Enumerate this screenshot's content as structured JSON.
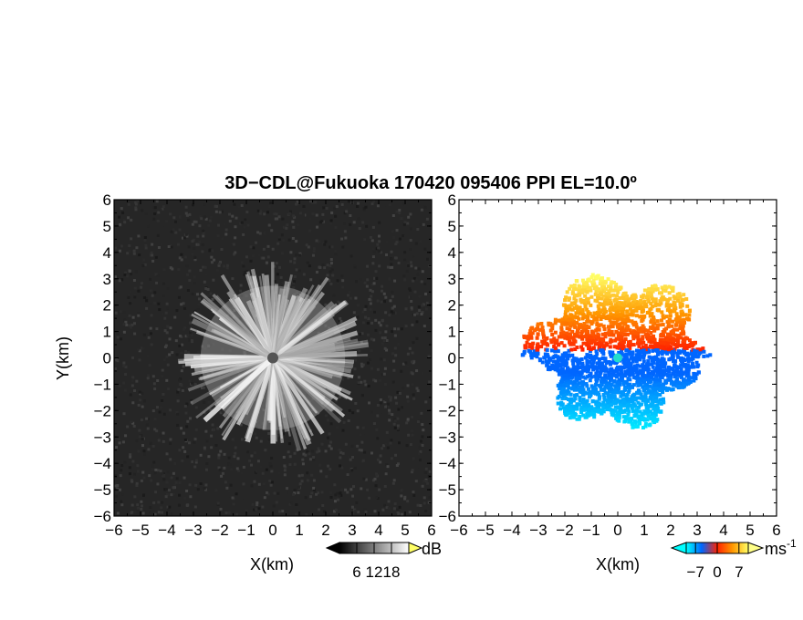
{
  "chart_data": [
    {
      "type": "heatmap",
      "panel": "reflectivity",
      "xlabel": "X(km)",
      "ylabel": "Y(km)",
      "xlim": [
        -6,
        6
      ],
      "ylim": [
        -6,
        6
      ],
      "x_ticks": [
        "-6",
        "-5",
        "-4",
        "-3",
        "-2",
        "-1",
        "0",
        "1",
        "2",
        "3",
        "4",
        "5",
        "6"
      ],
      "y_ticks": [
        "-6",
        "-5",
        "-4",
        "-3",
        "-2",
        "-1",
        "0",
        "1",
        "2",
        "3",
        "4",
        "5",
        "6"
      ],
      "colorbar": {
        "unit": "dB",
        "ticks": [
          "6",
          "12",
          "18"
        ],
        "tick_values": [
          6,
          12,
          18
        ],
        "range": [
          0,
          24
        ],
        "colors": [
          "#000000",
          "#ffffff"
        ]
      },
      "background_color": "#262626",
      "echo_radius_km": 3.5,
      "radar_site": [
        0,
        0
      ]
    },
    {
      "type": "heatmap",
      "panel": "doppler_velocity",
      "xlabel": "X(km)",
      "ylabel": "",
      "xlim": [
        -6,
        6
      ],
      "ylim": [
        -6,
        6
      ],
      "x_ticks": [
        "-6",
        "-5",
        "-4",
        "-3",
        "-2",
        "-1",
        "0",
        "1",
        "2",
        "3",
        "4",
        "5",
        "6"
      ],
      "y_ticks": [
        "-6",
        "-5",
        "-4",
        "-3",
        "-2",
        "-1",
        "0",
        "1",
        "2",
        "3",
        "4",
        "5",
        "6"
      ],
      "colorbar": {
        "unit": "ms",
        "unit_superscript": "-1",
        "ticks": [
          "-7",
          "0",
          "7"
        ],
        "tick_values": [
          -7,
          0,
          7
        ],
        "range": [
          -10,
          10
        ],
        "colors": [
          "#00ffff",
          "#0066ff",
          "#ff2200",
          "#ff9900",
          "#ffff66"
        ]
      },
      "echo_radius_km": 3.3,
      "radar_site": [
        0,
        0
      ]
    }
  ],
  "header": {
    "title": "3D−CDL@Fukuoka 170420 095406 PPI EL=10.0º"
  }
}
